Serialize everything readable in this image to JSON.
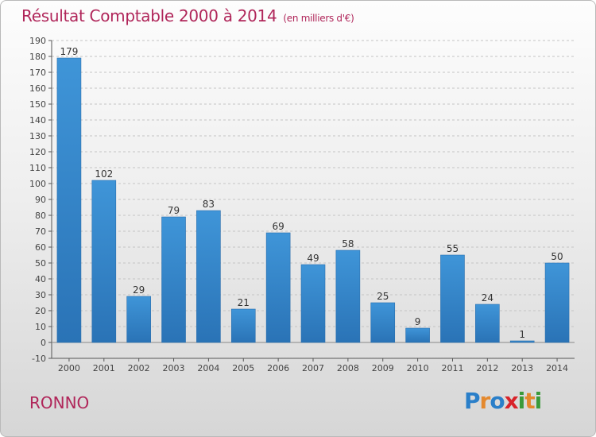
{
  "header": {
    "title": "Résultat Comptable 2000 à 2014",
    "subtitle": "(en milliers d'€)"
  },
  "footer": {
    "place": "RONNO",
    "logo": [
      "P",
      "r",
      "o",
      "x",
      "i",
      "t",
      "i"
    ],
    "logo_colors": [
      "#2a7fc9",
      "#e4892e",
      "#2a7fc9",
      "#d8232a",
      "#3a9a3a",
      "#e4892e",
      "#3a9a3a"
    ]
  },
  "chart_data": {
    "type": "bar",
    "title": "Résultat Comptable 2000 à 2014",
    "subtitle": "(en milliers d'€)",
    "categories": [
      "2000",
      "2001",
      "2002",
      "2003",
      "2004",
      "2005",
      "2006",
      "2007",
      "2008",
      "2009",
      "2010",
      "2011",
      "2012",
      "2013",
      "2014"
    ],
    "values": [
      179,
      102,
      29,
      79,
      83,
      21,
      69,
      49,
      58,
      25,
      9,
      55,
      24,
      1,
      50
    ],
    "ylim": [
      -10,
      190
    ],
    "yticks": [
      -10,
      0,
      10,
      20,
      30,
      40,
      50,
      60,
      70,
      80,
      90,
      100,
      110,
      120,
      130,
      140,
      150,
      160,
      170,
      180,
      190
    ],
    "grid": true,
    "bar_color": "#3f95d8",
    "bar_color_dark": "#2a73b6"
  }
}
